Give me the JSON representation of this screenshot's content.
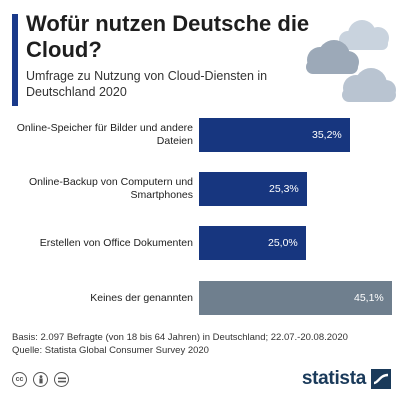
{
  "header": {
    "title": "Wofür nutzen Deutsche die Cloud?",
    "subtitle": "Umfrage zu Nutzung von Cloud-Diensten in Deutschland 2020"
  },
  "chart_data": {
    "type": "bar",
    "orientation": "horizontal",
    "categories": [
      "Online-Speicher für Bilder und andere Dateien",
      "Online-Backup von Computern und Smartphones",
      "Erstellen von Office Dokumenten",
      "Keines der genannten"
    ],
    "values": [
      35.2,
      25.3,
      25.0,
      45.1
    ],
    "value_labels": [
      "35,2%",
      "25,3%",
      "25,0%",
      "45,1%"
    ],
    "bar_colors": [
      "#17367f",
      "#17367f",
      "#17367f",
      "#6f7f8e"
    ],
    "unit": "%",
    "xlim": [
      0,
      45.1
    ]
  },
  "footer": {
    "basis": "Basis: 2.097 Befragte (von 18 bis 64 Jahren) in Deutschland; 22.07.-20.08.2020",
    "source": "Quelle: Statista Global Consumer Survey 2020",
    "brand": "statista"
  },
  "icons": [
    "cc-icon",
    "by-icon",
    "nd-icon",
    "cloud-icon"
  ]
}
